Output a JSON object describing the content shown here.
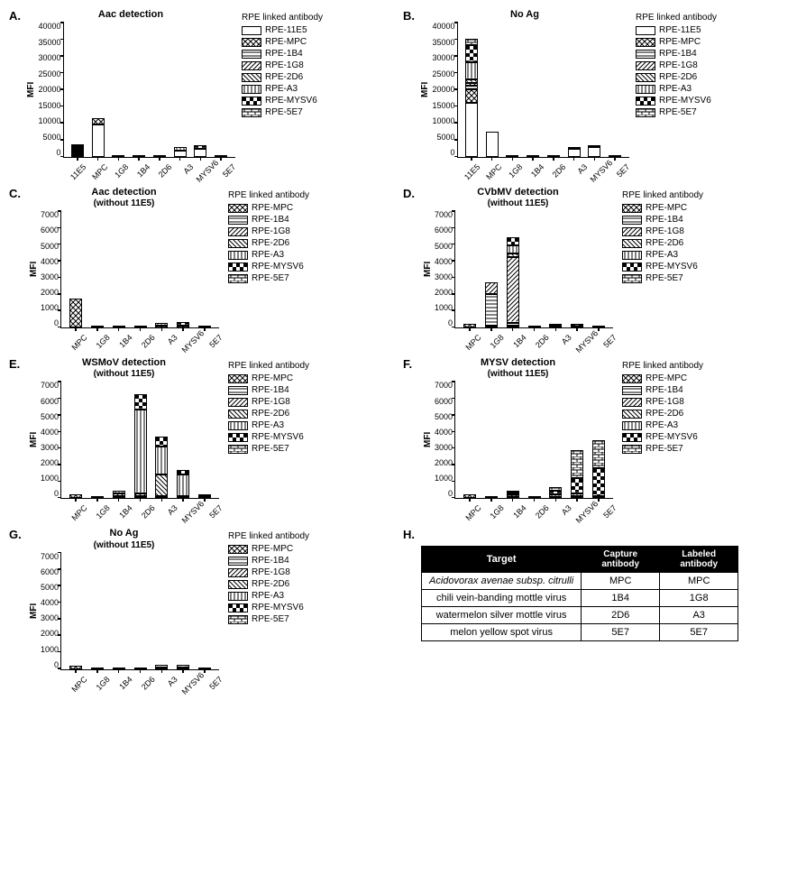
{
  "colors": {
    "fg": "#000000",
    "bg": "#ffffff"
  },
  "legend_title": "RPE linked antibody",
  "series_full": [
    {
      "key": "11E5",
      "label": "RPE-11E5",
      "pattern": "p-white"
    },
    {
      "key": "MPC",
      "label": "RPE-MPC",
      "pattern": "p-cross"
    },
    {
      "key": "1B4",
      "label": "RPE-1B4",
      "pattern": "p-hstripe"
    },
    {
      "key": "1G8",
      "label": "RPE-1G8",
      "pattern": "p-diag"
    },
    {
      "key": "2D6",
      "label": "RPE-2D6",
      "pattern": "p-diag2"
    },
    {
      "key": "A3",
      "label": "RPE-A3",
      "pattern": "p-vstripe"
    },
    {
      "key": "MYSV6",
      "label": "RPE-MYSV6",
      "pattern": "p-check"
    },
    {
      "key": "5E7",
      "label": "RPE-5E7",
      "pattern": "p-brick"
    }
  ],
  "series_no11": [
    {
      "key": "MPC",
      "label": "RPE-MPC",
      "pattern": "p-cross"
    },
    {
      "key": "1B4",
      "label": "RPE-1B4",
      "pattern": "p-hstripe"
    },
    {
      "key": "1G8",
      "label": "RPE-1G8",
      "pattern": "p-diag"
    },
    {
      "key": "2D6",
      "label": "RPE-2D6",
      "pattern": "p-diag2"
    },
    {
      "key": "A3",
      "label": "RPE-A3",
      "pattern": "p-vstripe"
    },
    {
      "key": "MYSV6",
      "label": "RPE-MYSV6",
      "pattern": "p-check"
    },
    {
      "key": "5E7",
      "label": "RPE-5E7",
      "pattern": "p-brick"
    }
  ],
  "cats_full": [
    "11E5",
    "MPC",
    "1G8",
    "1B4",
    "2D6",
    "A3",
    "MYSV6",
    "5E7"
  ],
  "cats_no11": [
    "MPC",
    "1G8",
    "1B4",
    "2D6",
    "A3",
    "MYSV6",
    "5E7"
  ],
  "panels": {
    "A": {
      "letter": "A.",
      "title": "Aac detection",
      "subtitle": "",
      "ylabel": "MFI",
      "ymax": 40000,
      "ystep": 5000,
      "legend": "series_full",
      "cats": "cats_full",
      "stacks": {
        "11E5": [
          {
            "s": "11E5",
            "v": 500
          },
          {
            "s": "MPC",
            "v": 500
          },
          {
            "s": "1B4",
            "v": 300
          },
          {
            "s": "1G8",
            "v": 300
          },
          {
            "s": "2D6",
            "v": 300
          },
          {
            "s": "A3",
            "v": 300
          },
          {
            "s": "MYSV6",
            "v": 300
          }
        ],
        "MPC": [
          {
            "s": "11E5",
            "v": 9500
          },
          {
            "s": "MPC",
            "v": 2000
          }
        ],
        "1G8": [
          {
            "s": "11E5",
            "v": 300
          }
        ],
        "1B4": [
          {
            "s": "11E5",
            "v": 300
          }
        ],
        "2D6": [
          {
            "s": "11E5",
            "v": 300
          }
        ],
        "A3": [
          {
            "s": "11E5",
            "v": 2000
          },
          {
            "s": "A3",
            "v": 1000
          }
        ],
        "MYSV6": [
          {
            "s": "11E5",
            "v": 2500
          },
          {
            "s": "MYSV6",
            "v": 1000
          }
        ],
        "5E7": [
          {
            "s": "11E5",
            "v": 300
          }
        ]
      }
    },
    "B": {
      "letter": "B.",
      "title": "No  Ag",
      "subtitle": "",
      "ylabel": "MFI",
      "ymax": 40000,
      "ystep": 5000,
      "legend": "series_full",
      "cats": "cats_full",
      "stacks": {
        "11E5": [
          {
            "s": "11E5",
            "v": 16000
          },
          {
            "s": "MPC",
            "v": 4000
          },
          {
            "s": "1B4",
            "v": 1000
          },
          {
            "s": "1G8",
            "v": 1000
          },
          {
            "s": "2D6",
            "v": 1000
          },
          {
            "s": "A3",
            "v": 5000
          },
          {
            "s": "MYSV6",
            "v": 5000
          },
          {
            "s": "5E7",
            "v": 2000
          }
        ],
        "MPC": [
          {
            "s": "11E5",
            "v": 7500
          }
        ],
        "1G8": [
          {
            "s": "11E5",
            "v": 300
          }
        ],
        "1B4": [
          {
            "s": "11E5",
            "v": 300
          }
        ],
        "2D6": [
          {
            "s": "11E5",
            "v": 300
          }
        ],
        "A3": [
          {
            "s": "11E5",
            "v": 2500
          },
          {
            "s": "A3",
            "v": 500
          }
        ],
        "MYSV6": [
          {
            "s": "11E5",
            "v": 3000
          },
          {
            "s": "MYSV6",
            "v": 500
          }
        ],
        "5E7": [
          {
            "s": "11E5",
            "v": 300
          }
        ]
      }
    },
    "C": {
      "letter": "C.",
      "title": "Aac detection",
      "subtitle": "(without 11E5)",
      "ylabel": "MFI",
      "ymax": 7000,
      "ystep": 1000,
      "legend": "series_no11",
      "cats": "cats_no11",
      "stacks": {
        "MPC": [
          {
            "s": "MPC",
            "v": 1750
          }
        ],
        "1G8": [
          {
            "s": "MPC",
            "v": 80
          }
        ],
        "1B4": [
          {
            "s": "MPC",
            "v": 80
          }
        ],
        "2D6": [
          {
            "s": "MPC",
            "v": 80
          }
        ],
        "A3": [
          {
            "s": "MPC",
            "v": 120
          },
          {
            "s": "A3",
            "v": 150
          }
        ],
        "MYSV6": [
          {
            "s": "MPC",
            "v": 120
          },
          {
            "s": "MYSV6",
            "v": 200
          }
        ],
        "5E7": [
          {
            "s": "MPC",
            "v": 80
          }
        ]
      }
    },
    "D": {
      "letter": "D.",
      "title": "CVbMV detection",
      "subtitle": "(without 11E5)",
      "ylabel": "MFI",
      "ymax": 7000,
      "ystep": 1000,
      "legend": "series_no11",
      "cats": "cats_no11",
      "stacks": {
        "MPC": [
          {
            "s": "MPC",
            "v": 250
          }
        ],
        "1G8": [
          {
            "s": "MPC",
            "v": 100
          },
          {
            "s": "1B4",
            "v": 1900
          },
          {
            "s": "1G8",
            "v": 700
          }
        ],
        "1B4": [
          {
            "s": "MPC",
            "v": 100
          },
          {
            "s": "1B4",
            "v": 200
          },
          {
            "s": "1G8",
            "v": 3900
          },
          {
            "s": "2D6",
            "v": 200
          },
          {
            "s": "A3",
            "v": 500
          },
          {
            "s": "MYSV6",
            "v": 500
          }
        ],
        "2D6": [
          {
            "s": "MPC",
            "v": 80
          }
        ],
        "A3": [
          {
            "s": "MPC",
            "v": 100
          },
          {
            "s": "A3",
            "v": 100
          }
        ],
        "MYSV6": [
          {
            "s": "MPC",
            "v": 100
          },
          {
            "s": "MYSV6",
            "v": 130
          }
        ],
        "5E7": [
          {
            "s": "MPC",
            "v": 80
          }
        ]
      }
    },
    "E": {
      "letter": "E.",
      "title": "WSMoV detection",
      "subtitle": "(without 11E5)",
      "ylabel": "MFI",
      "ymax": 7000,
      "ystep": 1000,
      "legend": "series_no11",
      "cats": "cats_no11",
      "stacks": {
        "MPC": [
          {
            "s": "MPC",
            "v": 250
          }
        ],
        "1G8": [
          {
            "s": "MPC",
            "v": 80
          }
        ],
        "1B4": [
          {
            "s": "MPC",
            "v": 100
          },
          {
            "s": "1G8",
            "v": 200
          },
          {
            "s": "A3",
            "v": 150
          }
        ],
        "2D6": [
          {
            "s": "MPC",
            "v": 100
          },
          {
            "s": "2D6",
            "v": 200
          },
          {
            "s": "A3",
            "v": 5000
          },
          {
            "s": "MYSV6",
            "v": 900
          }
        ],
        "A3": [
          {
            "s": "MPC",
            "v": 100
          },
          {
            "s": "2D6",
            "v": 1300
          },
          {
            "s": "A3",
            "v": 1700
          },
          {
            "s": "MYSV6",
            "v": 600
          }
        ],
        "MYSV6": [
          {
            "s": "MPC",
            "v": 100
          },
          {
            "s": "A3",
            "v": 1300
          },
          {
            "s": "MYSV6",
            "v": 300
          }
        ],
        "5E7": [
          {
            "s": "MPC",
            "v": 100
          },
          {
            "s": "5E7",
            "v": 100
          }
        ]
      }
    },
    "F": {
      "letter": "F.",
      "title": "MYSV detection",
      "subtitle": "(without 11E5)",
      "ylabel": "MFI",
      "ymax": 7000,
      "ystep": 1000,
      "legend": "series_no11",
      "cats": "cats_no11",
      "stacks": {
        "MPC": [
          {
            "s": "MPC",
            "v": 220
          }
        ],
        "1G8": [
          {
            "s": "MPC",
            "v": 80
          }
        ],
        "1B4": [
          {
            "s": "MPC",
            "v": 80
          },
          {
            "s": "1G8",
            "v": 130
          },
          {
            "s": "A3",
            "v": 100
          },
          {
            "s": "MYSV6",
            "v": 100
          }
        ],
        "2D6": [
          {
            "s": "MPC",
            "v": 80
          }
        ],
        "A3": [
          {
            "s": "MPC",
            "v": 100
          },
          {
            "s": "A3",
            "v": 150
          },
          {
            "s": "MYSV6",
            "v": 200
          },
          {
            "s": "5E7",
            "v": 200
          }
        ],
        "MYSV6": [
          {
            "s": "MPC",
            "v": 100
          },
          {
            "s": "A3",
            "v": 200
          },
          {
            "s": "MYSV6",
            "v": 900
          },
          {
            "s": "5E7",
            "v": 1650
          }
        ],
        "5E7": [
          {
            "s": "MPC",
            "v": 100
          },
          {
            "s": "MYSV6",
            "v": 1700
          },
          {
            "s": "5E7",
            "v": 1650
          }
        ]
      }
    },
    "G": {
      "letter": "G.",
      "title": "No Ag",
      "subtitle": "(without 11E5)",
      "ylabel": "MFI",
      "ymax": 7000,
      "ystep": 1000,
      "legend": "series_no11",
      "cats": "cats_no11",
      "stacks": {
        "MPC": [
          {
            "s": "MPC",
            "v": 220
          }
        ],
        "1G8": [
          {
            "s": "MPC",
            "v": 60
          }
        ],
        "1B4": [
          {
            "s": "MPC",
            "v": 60
          }
        ],
        "2D6": [
          {
            "s": "MPC",
            "v": 60
          }
        ],
        "A3": [
          {
            "s": "MPC",
            "v": 100
          },
          {
            "s": "A3",
            "v": 120
          }
        ],
        "MYSV6": [
          {
            "s": "MPC",
            "v": 100
          },
          {
            "s": "MYSV6",
            "v": 120
          }
        ],
        "5E7": [
          {
            "s": "MPC",
            "v": 60
          }
        ]
      }
    }
  },
  "table": {
    "letter": "H.",
    "headers": [
      "Target",
      "Capture antibody",
      "Labeled antibody"
    ],
    "rows": [
      {
        "target": "Acidovorax avenae subsp. citrulli",
        "italic": true,
        "capture": "MPC",
        "labeled": "MPC"
      },
      {
        "target": "chili vein-banding mottle virus",
        "italic": false,
        "capture": "1B4",
        "labeled": "1G8"
      },
      {
        "target": "watermelon silver mottle virus",
        "italic": false,
        "capture": "2D6",
        "labeled": "A3"
      },
      {
        "target": "melon yellow spot virus",
        "italic": false,
        "capture": "5E7",
        "labeled": "5E7"
      }
    ]
  },
  "chart_size": {
    "top_w": 190,
    "top_h": 150,
    "small_w": 175,
    "small_h": 130
  },
  "fontsize": {
    "title": 11,
    "axis": 10,
    "tick": 9,
    "legend": 10
  }
}
